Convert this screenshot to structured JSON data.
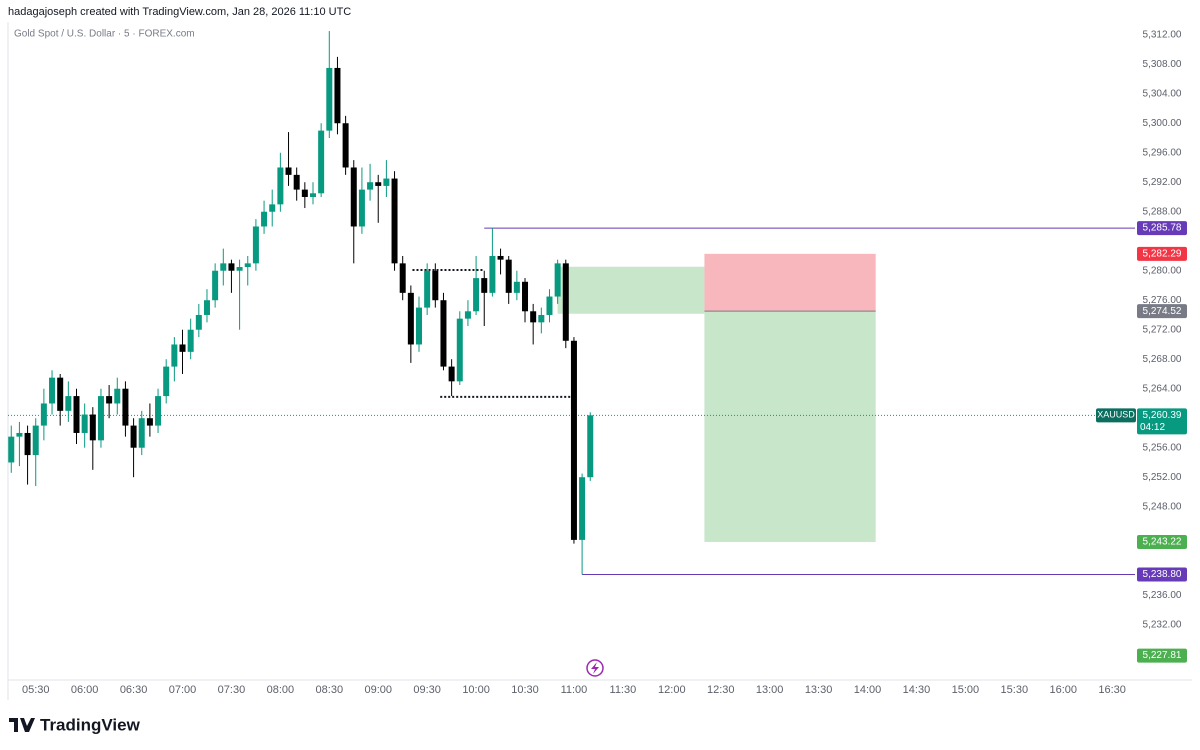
{
  "header": "hadagajoseph created with TradingView.com, Jan 28, 2026 11:10 UTC",
  "footer_logo": "TradingView",
  "chart_data": {
    "type": "candlestick",
    "title": "Gold Spot / U.S. Dollar · 5 · FOREX.com",
    "up_color": "#089981",
    "down_color": "#000000",
    "x": [
      315,
      320,
      325,
      330,
      335,
      340,
      345,
      350,
      355,
      360,
      365,
      370,
      375,
      380,
      385,
      390,
      395,
      400,
      405,
      410,
      415,
      420,
      425,
      430,
      435,
      440,
      445,
      450,
      455,
      460,
      465,
      470,
      475,
      480,
      485,
      490,
      495,
      500,
      505,
      510,
      515,
      520,
      525,
      530,
      535,
      540,
      545,
      550,
      555,
      560,
      565,
      570,
      575,
      580,
      585,
      590,
      595,
      600,
      605,
      610,
      615,
      620,
      625,
      630,
      635,
      640,
      645,
      650,
      655,
      660,
      665,
      670
    ],
    "open": [
      5254,
      5257.5,
      5258,
      5255,
      5259,
      5262,
      5265.5,
      5261,
      5263,
      5258,
      5260.5,
      5257,
      5263,
      5262,
      5264,
      5259,
      5256,
      5260,
      5259,
      5263,
      5267,
      5270,
      5269,
      5272,
      5274,
      5276,
      5280,
      5281,
      5280,
      5280.5,
      5281,
      5286,
      5288,
      5289,
      5294,
      5293,
      5291,
      5290,
      5290.5,
      5299,
      5307.5,
      5300,
      5294,
      5286,
      5291,
      5292,
      5291.5,
      5292.5,
      5281,
      5277,
      5270,
      5275,
      5280,
      5276,
      5267,
      5265,
      5273.5,
      5274.5,
      5279,
      5277,
      5282,
      5281.5,
      5277,
      5278.5,
      5274.5,
      5273,
      5274,
      5276.5,
      5281,
      5270.5,
      5243.5,
      5252
    ],
    "high": [
      5259,
      5259.5,
      5259,
      5260,
      5264,
      5266.5,
      5266,
      5265,
      5264,
      5262,
      5261.5,
      5264,
      5264.5,
      5265.5,
      5265,
      5260,
      5261,
      5262,
      5264,
      5268,
      5271,
      5272,
      5273.5,
      5275.5,
      5277.5,
      5281,
      5283,
      5281.5,
      5281.5,
      5282,
      5287,
      5289.5,
      5291,
      5296,
      5298.8,
      5294,
      5292,
      5292,
      5300,
      5312.5,
      5309,
      5301,
      5295,
      5294,
      5294.5,
      5293,
      5295,
      5293.5,
      5282,
      5278,
      5276.5,
      5281,
      5281,
      5277,
      5268,
      5274.5,
      5276,
      5282,
      5280,
      5285.78,
      5283,
      5282,
      5280,
      5279,
      5275.5,
      5275,
      5277.5,
      5281.5,
      5281.5,
      5271,
      5252.5,
      5260.8
    ],
    "low": [
      5252.6,
      5253.5,
      5251,
      5250.8,
      5257,
      5260.5,
      5259,
      5259.5,
      5256.5,
      5256,
      5253,
      5256,
      5260,
      5260.5,
      5257.5,
      5252,
      5255,
      5257.5,
      5258,
      5262,
      5265,
      5266,
      5268,
      5271,
      5273,
      5275,
      5278,
      5277,
      5272,
      5278,
      5280,
      5285,
      5286,
      5288,
      5291.5,
      5289.5,
      5288.5,
      5289,
      5290,
      5298,
      5298.5,
      5293,
      5281,
      5285,
      5289.5,
      5286.5,
      5290,
      5280,
      5276,
      5267.5,
      5269,
      5274,
      5275,
      5266.5,
      5263,
      5264.5,
      5272.5,
      5274,
      5272.5,
      5276.5,
      5279.5,
      5275.5,
      5276,
      5273,
      5270,
      5271.5,
      5273,
      5275.5,
      5269.5,
      5243,
      5238.8,
      5251.5
    ],
    "close": [
      5257.5,
      5258,
      5255,
      5259,
      5262,
      5265.5,
      5261,
      5263,
      5258,
      5260.5,
      5257,
      5263,
      5262,
      5264,
      5259,
      5256,
      5260,
      5259,
      5263,
      5267,
      5270,
      5269,
      5272,
      5274,
      5276,
      5280,
      5281,
      5280,
      5280.5,
      5281,
      5286,
      5288,
      5289,
      5294,
      5293,
      5291,
      5290,
      5290.5,
      5299,
      5307.5,
      5300,
      5294,
      5286,
      5291,
      5292,
      5291.5,
      5292.5,
      5281,
      5277,
      5270,
      5275,
      5280,
      5276,
      5267,
      5265,
      5273.5,
      5274.5,
      5279,
      5277,
      5282,
      5281.5,
      5277,
      5278.5,
      5274.5,
      5273,
      5274,
      5276.5,
      5281,
      5270.5,
      5243.5,
      5252,
      5260.39
    ],
    "xlim": [
      313,
      1004
    ],
    "xticks": [
      {
        "value": 330,
        "label": "05:30"
      },
      {
        "value": 360,
        "label": "06:00"
      },
      {
        "value": 390,
        "label": "06:30"
      },
      {
        "value": 420,
        "label": "07:00"
      },
      {
        "value": 450,
        "label": "07:30"
      },
      {
        "value": 480,
        "label": "08:00"
      },
      {
        "value": 510,
        "label": "08:30"
      },
      {
        "value": 540,
        "label": "09:00"
      },
      {
        "value": 570,
        "label": "09:30"
      },
      {
        "value": 600,
        "label": "10:00"
      },
      {
        "value": 630,
        "label": "10:30"
      },
      {
        "value": 660,
        "label": "11:00"
      },
      {
        "value": 690,
        "label": "11:30"
      },
      {
        "value": 720,
        "label": "12:00"
      },
      {
        "value": 750,
        "label": "12:30"
      },
      {
        "value": 780,
        "label": "13:00"
      },
      {
        "value": 810,
        "label": "13:30"
      },
      {
        "value": 840,
        "label": "14:00"
      },
      {
        "value": 870,
        "label": "14:30"
      },
      {
        "value": 900,
        "label": "15:00"
      },
      {
        "value": 930,
        "label": "15:30"
      },
      {
        "value": 960,
        "label": "16:00"
      },
      {
        "value": 990,
        "label": "16:30"
      }
    ],
    "ylim": [
      5224.5,
      5314
    ],
    "yticks": [
      {
        "value": 5312,
        "label": "5,312.00"
      },
      {
        "value": 5308,
        "label": "5,308.00"
      },
      {
        "value": 5304,
        "label": "5,304.00"
      },
      {
        "value": 5300,
        "label": "5,300.00"
      },
      {
        "value": 5296,
        "label": "5,296.00"
      },
      {
        "value": 5292,
        "label": "5,292.00"
      },
      {
        "value": 5288,
        "label": "5,288.00"
      },
      {
        "value": 5280,
        "label": "5,280.00"
      },
      {
        "value": 5276,
        "label": "5,276.00"
      },
      {
        "value": 5272,
        "label": "5,272.00"
      },
      {
        "value": 5268,
        "label": "5,268.00"
      },
      {
        "value": 5264,
        "label": "5,264.00"
      },
      {
        "value": 5256,
        "label": "5,256.00"
      },
      {
        "value": 5252,
        "label": "5,252.00"
      },
      {
        "value": 5248,
        "label": "5,248.00"
      },
      {
        "value": 5236,
        "label": "5,236.00"
      },
      {
        "value": 5232,
        "label": "5,232.00"
      }
    ],
    "last_price": {
      "symbol": "XAUUSD",
      "value": 5260.39,
      "label": "5,260.39",
      "countdown": "04:12",
      "color": "#089981"
    },
    "price_labels": [
      {
        "value": 5285.78,
        "label": "5,285.78",
        "color": "#673ab7",
        "line_from": 605
      },
      {
        "value": 5238.8,
        "label": "5,238.80",
        "color": "#673ab7",
        "line_from": 665
      },
      {
        "value": 5227.81,
        "label": "5,227.81",
        "color": "#4caf50"
      }
    ],
    "position": {
      "from": 740,
      "to": 845,
      "stop": {
        "value": 5282.29,
        "label": "5,282.29",
        "color": "#f23645",
        "fill": "#f8b7bc"
      },
      "entry": {
        "value": 5274.52,
        "label": "5,274.52",
        "color": "#787b86"
      },
      "target": {
        "value": 5243.22,
        "label": "5,243.22",
        "color": "#4caf50",
        "fill": "#c8e6c9"
      }
    },
    "zones": [
      {
        "top": 5280.54,
        "bottom": 5274.17,
        "from": 650,
        "to": 740,
        "color": "#c8e6c9"
      }
    ],
    "dotted_lines": [
      {
        "value": 5280.1,
        "from": 561,
        "to": 605
      },
      {
        "value": 5262.9,
        "from": 578,
        "to": 660
      }
    ]
  }
}
